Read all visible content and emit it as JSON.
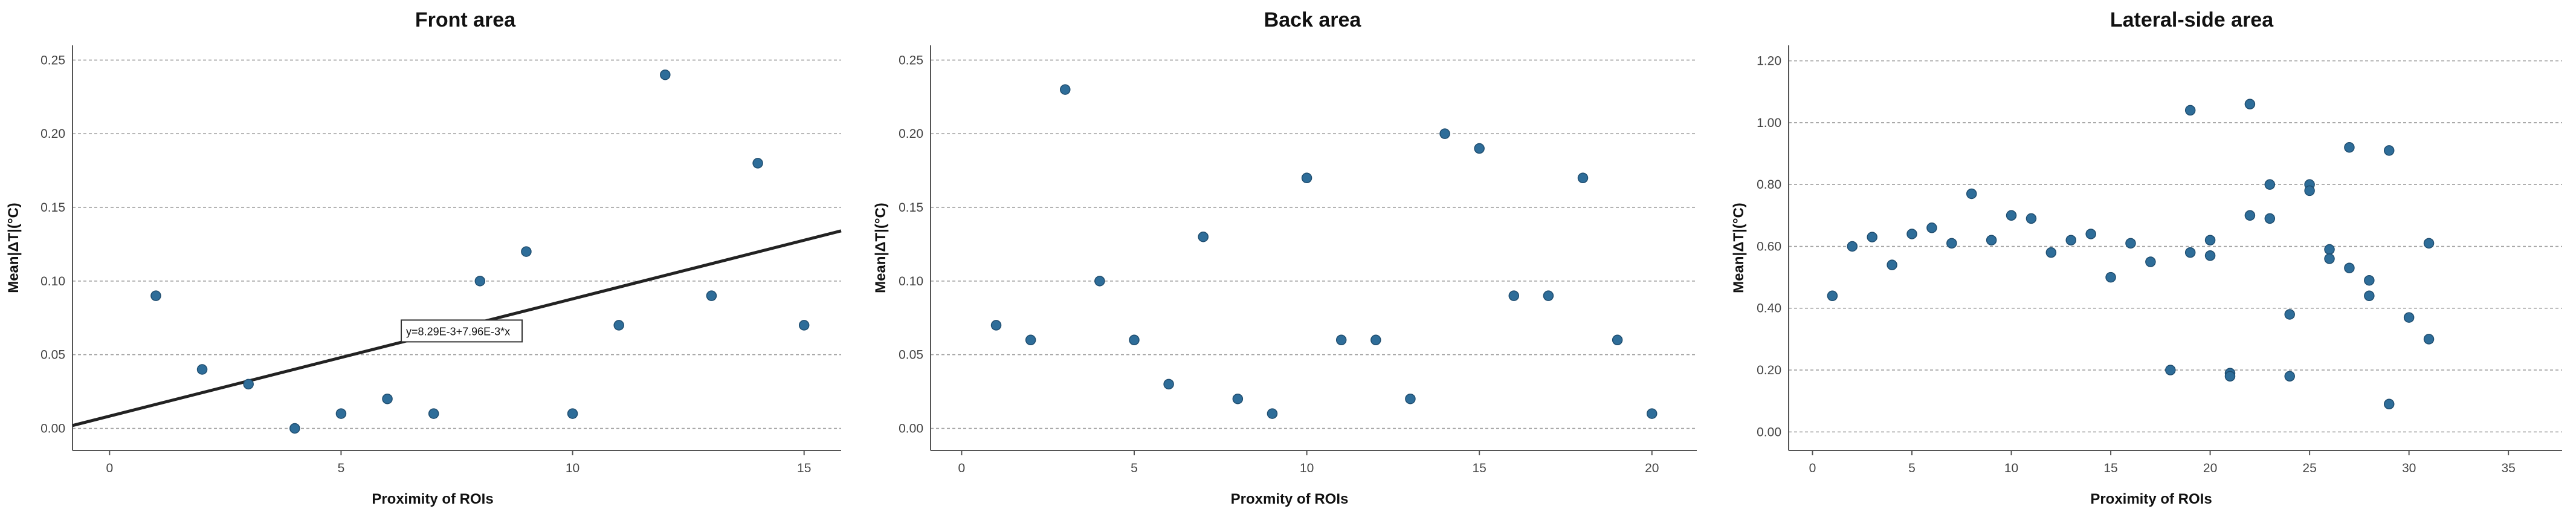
{
  "chart_data": [
    {
      "type": "scatter",
      "title": "Front area",
      "xlabel": "Proximity of ROIs",
      "ylabel": "Mean|ΔT|(°C)",
      "xlim": [
        -0.8,
        15.8
      ],
      "ylim": [
        -0.015,
        0.26
      ],
      "xticks": [
        0,
        5,
        10,
        15
      ],
      "xtick_labels": [
        "0",
        "5",
        "10",
        "15"
      ],
      "yticks": [
        0,
        0.05,
        0.1,
        0.15,
        0.2,
        0.25
      ],
      "ytick_labels": [
        "0.00",
        "0.05",
        "0.10",
        "0.15",
        "0.20",
        "0.25"
      ],
      "grid": true,
      "points": [
        {
          "x": 1,
          "y": 0.09
        },
        {
          "x": 2,
          "y": 0.04
        },
        {
          "x": 3,
          "y": 0.03
        },
        {
          "x": 4,
          "y": 0.0
        },
        {
          "x": 5,
          "y": 0.01
        },
        {
          "x": 6,
          "y": 0.02
        },
        {
          "x": 7,
          "y": 0.01
        },
        {
          "x": 8,
          "y": 0.1
        },
        {
          "x": 9,
          "y": 0.12
        },
        {
          "x": 10,
          "y": 0.01
        },
        {
          "x": 11,
          "y": 0.07
        },
        {
          "x": 12,
          "y": 0.24
        },
        {
          "x": 13,
          "y": 0.09
        },
        {
          "x": 14,
          "y": 0.18
        },
        {
          "x": 15,
          "y": 0.07
        }
      ],
      "fit": {
        "intercept": 0.00829,
        "slope": 0.00796,
        "label": "y=8.29E-3+7.96E-3*x"
      }
    },
    {
      "type": "scatter",
      "title": "Back area",
      "xlabel": "Proxmity of ROIs",
      "ylabel": "Mean|ΔT|(°C)",
      "xlim": [
        -0.9,
        21.3
      ],
      "ylim": [
        -0.015,
        0.26
      ],
      "xticks": [
        0,
        5,
        10,
        15,
        20
      ],
      "xtick_labels": [
        "0",
        "5",
        "10",
        "15",
        "20"
      ],
      "yticks": [
        0,
        0.05,
        0.1,
        0.15,
        0.2,
        0.25
      ],
      "ytick_labels": [
        "0.00",
        "0.05",
        "0.10",
        "0.15",
        "0.20",
        "0.25"
      ],
      "grid": true,
      "points": [
        {
          "x": 1,
          "y": 0.07
        },
        {
          "x": 2,
          "y": 0.06
        },
        {
          "x": 3,
          "y": 0.23
        },
        {
          "x": 4,
          "y": 0.1
        },
        {
          "x": 5,
          "y": 0.06
        },
        {
          "x": 6,
          "y": 0.03
        },
        {
          "x": 7,
          "y": 0.13
        },
        {
          "x": 8,
          "y": 0.02
        },
        {
          "x": 9,
          "y": 0.01
        },
        {
          "x": 10,
          "y": 0.17
        },
        {
          "x": 11,
          "y": 0.06
        },
        {
          "x": 12,
          "y": 0.06
        },
        {
          "x": 13,
          "y": 0.02
        },
        {
          "x": 14,
          "y": 0.2
        },
        {
          "x": 15,
          "y": 0.19
        },
        {
          "x": 16,
          "y": 0.09
        },
        {
          "x": 17,
          "y": 0.09
        },
        {
          "x": 18,
          "y": 0.17
        },
        {
          "x": 19,
          "y": 0.06
        },
        {
          "x": 20,
          "y": 0.01
        }
      ]
    },
    {
      "type": "scatter",
      "title": "Lateral-side area",
      "xlabel": "Proximity of ROIs",
      "ylabel": "Mean|ΔT|(°C)",
      "xlim": [
        -1.2,
        37.7
      ],
      "ylim": [
        -0.06,
        1.25
      ],
      "xticks": [
        0,
        5,
        10,
        15,
        20,
        25,
        30,
        35
      ],
      "xtick_labels": [
        "0",
        "5",
        "10",
        "15",
        "20",
        "25",
        "30",
        "35"
      ],
      "yticks": [
        0,
        0.2,
        0.4,
        0.6,
        0.8,
        1.0,
        1.2
      ],
      "ytick_labels": [
        "0.00",
        "0.20",
        "0.40",
        "0.60",
        "0.80",
        "1.00",
        "1.20"
      ],
      "grid": true,
      "points": [
        {
          "x": 1,
          "y": 0.44
        },
        {
          "x": 2,
          "y": 0.6
        },
        {
          "x": 3,
          "y": 0.63
        },
        {
          "x": 4,
          "y": 0.54
        },
        {
          "x": 5,
          "y": 0.64
        },
        {
          "x": 6,
          "y": 0.66
        },
        {
          "x": 7,
          "y": 0.61
        },
        {
          "x": 8,
          "y": 0.77
        },
        {
          "x": 9,
          "y": 0.62
        },
        {
          "x": 10,
          "y": 0.7
        },
        {
          "x": 11,
          "y": 0.69
        },
        {
          "x": 12,
          "y": 0.58
        },
        {
          "x": 13,
          "y": 0.62
        },
        {
          "x": 14,
          "y": 0.64
        },
        {
          "x": 15,
          "y": 0.5
        },
        {
          "x": 16,
          "y": 0.61
        },
        {
          "x": 17,
          "y": 0.55
        },
        {
          "x": 18,
          "y": 0.2
        },
        {
          "x": 19,
          "y": 1.04
        },
        {
          "x": 19,
          "y": 0.58
        },
        {
          "x": 20,
          "y": 0.62
        },
        {
          "x": 20,
          "y": 0.57
        },
        {
          "x": 21,
          "y": 0.19
        },
        {
          "x": 21,
          "y": 0.18
        },
        {
          "x": 22,
          "y": 1.06
        },
        {
          "x": 22,
          "y": 0.7
        },
        {
          "x": 23,
          "y": 0.8
        },
        {
          "x": 23,
          "y": 0.69
        },
        {
          "x": 24,
          "y": 0.38
        },
        {
          "x": 24,
          "y": 0.18
        },
        {
          "x": 25,
          "y": 0.8
        },
        {
          "x": 25,
          "y": 0.78
        },
        {
          "x": 26,
          "y": 0.59
        },
        {
          "x": 26,
          "y": 0.56
        },
        {
          "x": 27,
          "y": 0.92
        },
        {
          "x": 27,
          "y": 0.53
        },
        {
          "x": 28,
          "y": 0.49
        },
        {
          "x": 28,
          "y": 0.44
        },
        {
          "x": 29,
          "y": 0.91
        },
        {
          "x": 29,
          "y": 0.09
        },
        {
          "x": 30,
          "y": 0.37
        },
        {
          "x": 31,
          "y": 0.61
        },
        {
          "x": 31,
          "y": 0.3
        }
      ]
    }
  ]
}
